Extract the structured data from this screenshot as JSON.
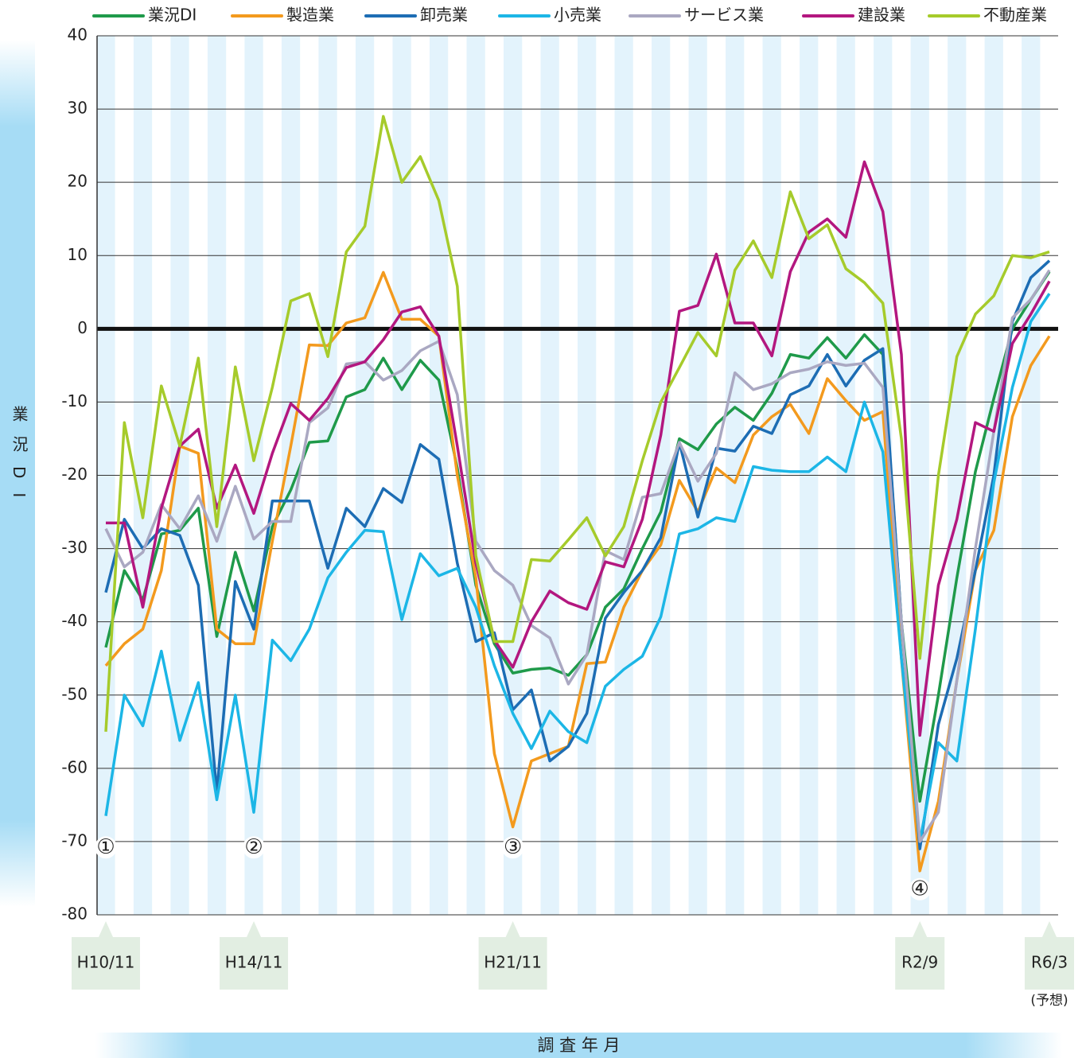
{
  "chart_data": {
    "type": "line",
    "ylabel": "業況DI",
    "xlabel": "調 査 年 月",
    "forecast_label": "(予想)",
    "annotations": [
      "①",
      "②",
      "③",
      "④"
    ],
    "categories": [
      "H10/11",
      null,
      null,
      null,
      null,
      null,
      null,
      null,
      "H14/11",
      null,
      null,
      null,
      null,
      null,
      null,
      null,
      null,
      null,
      null,
      null,
      null,
      null,
      "H21/11",
      null,
      null,
      null,
      null,
      null,
      null,
      null,
      null,
      null,
      null,
      null,
      null,
      null,
      null,
      null,
      null,
      null,
      null,
      null,
      null,
      null,
      "R2/9",
      null,
      null,
      null,
      null,
      null,
      null,
      "R6/3"
    ],
    "ylim": [
      -80,
      40
    ],
    "yticks": [
      -80,
      -70,
      -60,
      -50,
      -40,
      -30,
      -20,
      -10,
      0,
      10,
      20,
      30,
      40
    ],
    "grid": true,
    "legend": "top",
    "series": [
      {
        "name": "業況DI",
        "color": "#1f9a4a",
        "values": [
          -43.5,
          -33,
          -37,
          -28,
          -27.5,
          -24.5,
          -42,
          -30.5,
          -38.5,
          -27,
          -22,
          -15.5,
          -15.3,
          -9.3,
          -8.3,
          -4,
          -8.3,
          -4.3,
          -7,
          -19,
          -35,
          -43,
          -47,
          -46.5,
          -46.3,
          -47.3,
          -44.5,
          -38,
          -35.5,
          -30,
          -25,
          -15,
          -16.5,
          -13,
          -10.7,
          -12.5,
          -8.8,
          -3.5,
          -4,
          -1.2,
          -4,
          -0.8,
          -3.5,
          -40,
          -64.5,
          -50,
          -34,
          -19.5,
          -9.5,
          0,
          4,
          7.8
        ]
      },
      {
        "name": "製造業",
        "color": "#f39a1e",
        "values": [
          -46,
          -43,
          -41,
          -33,
          -16,
          -17,
          -41,
          -43,
          -43,
          -29,
          -16,
          -2.2,
          -2.3,
          0.8,
          1.5,
          7.7,
          1.3,
          1.3,
          -1,
          -20,
          -34,
          -58,
          -68,
          -59,
          -58,
          -57,
          -45.7,
          -45.5,
          -38,
          -33,
          -29.5,
          -20.7,
          -25,
          -19,
          -21,
          -14.5,
          -12,
          -10.3,
          -14.3,
          -6.8,
          -9.8,
          -12.5,
          -11.3,
          -45,
          -74,
          -64.5,
          -48,
          -33,
          -27.5,
          -12,
          -5,
          -1
        ]
      },
      {
        "name": "卸売業",
        "color": "#1d6db4",
        "values": [
          -36,
          -26,
          -30,
          -27.3,
          -28.2,
          -35,
          -63.3,
          -34.5,
          -41,
          -23.5,
          -23.5,
          -23.5,
          -32.7,
          -24.5,
          -27,
          -21.8,
          -23.7,
          -15.8,
          -17.8,
          -32,
          -42.7,
          -41.5,
          -52,
          -49.3,
          -59,
          -57,
          -52.5,
          -39.5,
          -36,
          -33,
          -28.5,
          -15.5,
          -25.7,
          -16.3,
          -16.7,
          -13.3,
          -14.3,
          -9,
          -7.8,
          -3.5,
          -7.8,
          -4.3,
          -2.7,
          -40,
          -71,
          -54,
          -45,
          -33,
          -20,
          1,
          7,
          9.3
        ]
      },
      {
        "name": "小売業",
        "color": "#1cb6e6",
        "values": [
          -66.5,
          -50,
          -54.2,
          -44,
          -56.2,
          -48.3,
          -64.3,
          -50,
          -66,
          -42.5,
          -45.3,
          -41,
          -34,
          -30.5,
          -27.5,
          -27.7,
          -39.7,
          -30.7,
          -33.7,
          -32.7,
          -38,
          -46,
          -52.5,
          -57.3,
          -52.2,
          -55,
          -56.5,
          -48.8,
          -46.5,
          -44.7,
          -39.3,
          -28,
          -27.3,
          -25.8,
          -26.3,
          -18.8,
          -19.3,
          -19.5,
          -19.5,
          -17.5,
          -19.5,
          -10,
          -16.8,
          -45,
          -70,
          -56.5,
          -59,
          -41,
          -21,
          -8,
          1,
          4.8
        ]
      },
      {
        "name": "サービス業",
        "color": "#aaa8c2",
        "values": [
          -27.3,
          -32.5,
          -30.5,
          -24,
          -27.3,
          -22.8,
          -29,
          -21.5,
          -28.7,
          -26.3,
          -26.3,
          -12.8,
          -10.8,
          -4.8,
          -4.5,
          -7,
          -5.7,
          -3,
          -1.7,
          -9,
          -29,
          -33,
          -35,
          -40.5,
          -42.2,
          -48.5,
          -44.5,
          -30.3,
          -31.5,
          -23,
          -22.5,
          -15.5,
          -20.8,
          -17,
          -6,
          -8.3,
          -7.5,
          -6,
          -5.5,
          -4.5,
          -5,
          -4.7,
          -8,
          -40,
          -70,
          -66,
          -48,
          -30,
          -14,
          1.5,
          4,
          8
        ]
      },
      {
        "name": "建設業",
        "color": "#b3177f",
        "values": [
          -26.5,
          -26.5,
          -38,
          -24.5,
          -16,
          -13.7,
          -24.5,
          -18.6,
          -25.2,
          -17,
          -10.2,
          -12.5,
          -9.5,
          -5.3,
          -4.5,
          -1.5,
          2.3,
          3,
          -1,
          -16,
          -32,
          -42.5,
          -46.2,
          -40,
          -35.8,
          -37.4,
          -38.3,
          -31.8,
          -32.5,
          -26,
          -14.5,
          2.4,
          3.2,
          10.2,
          0.8,
          0.8,
          -3.7,
          7.8,
          13.2,
          15,
          12.5,
          22.8,
          16,
          -3.5,
          -55.5,
          -35,
          -26,
          -12.8,
          -14,
          -2,
          2,
          6.5
        ]
      },
      {
        "name": "不動産業",
        "color": "#a6cb2b",
        "values": [
          -55,
          -12.8,
          -25.8,
          -7.8,
          -16,
          -4,
          -27,
          -5.2,
          -18,
          -8,
          3.8,
          4.8,
          -3.8,
          10.5,
          14,
          29,
          20,
          23.5,
          17.5,
          5.8,
          -31,
          -42.7,
          -42.7,
          -31.5,
          -31.7,
          -28.8,
          -25.8,
          -31,
          -27,
          -18,
          -10,
          -5.3,
          -0.5,
          -3.7,
          8,
          12,
          7,
          18.7,
          12.3,
          14.2,
          8.2,
          6.3,
          3.5,
          -15,
          -45,
          -20,
          -3.8,
          2,
          4.5,
          10,
          9.7,
          10.5
        ]
      }
    ]
  }
}
